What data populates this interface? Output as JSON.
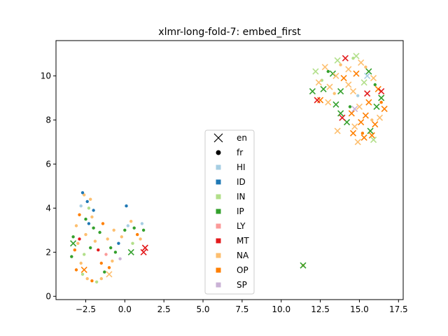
{
  "chart_data": {
    "type": "scatter",
    "title": "xlmr-long-fold-7: embed_first",
    "xlabel": "",
    "ylabel": "",
    "xlim": [
      -4.4,
      17.8
    ],
    "ylim": [
      -0.15,
      11.6
    ],
    "x_ticks": [
      -2.5,
      0.0,
      2.5,
      5.0,
      7.5,
      10.0,
      12.5,
      15.0,
      17.5
    ],
    "x_tick_labels": [
      "−2.5",
      "0.0",
      "2.5",
      "5.0",
      "7.5",
      "10.0",
      "12.5",
      "15.0",
      "17.5"
    ],
    "y_ticks": [
      0,
      2,
      4,
      6,
      8,
      10
    ],
    "y_tick_labels": [
      "0",
      "2",
      "4",
      "6",
      "8",
      "10"
    ],
    "grid": false,
    "legend_position": "center",
    "marker_legend": [
      {
        "label": "en",
        "marker": "x"
      },
      {
        "label": "fr",
        "marker": "circle"
      }
    ],
    "series": [
      {
        "name": "HI",
        "color": "#a6cee3"
      },
      {
        "name": "ID",
        "color": "#1f78b4"
      },
      {
        "name": "IN",
        "color": "#b2df8a"
      },
      {
        "name": "IP",
        "color": "#33a02c"
      },
      {
        "name": "LY",
        "color": "#fb9a99"
      },
      {
        "name": "MT",
        "color": "#e31a1c"
      },
      {
        "name": "NA",
        "color": "#fdbf6f"
      },
      {
        "name": "OP",
        "color": "#ff7f00"
      },
      {
        "name": "SP",
        "color": "#cab2d6"
      }
    ],
    "points_fr": [
      {
        "s": "NA",
        "x": -2.6,
        "y": 4.6
      },
      {
        "s": "ID",
        "x": -2.4,
        "y": 4.3
      },
      {
        "s": "HI",
        "x": -2.8,
        "y": 4.1
      },
      {
        "s": "NA",
        "x": -2.2,
        "y": 4.4
      },
      {
        "s": "ID",
        "x": -2.0,
        "y": 3.9
      },
      {
        "s": "OP",
        "x": -2.9,
        "y": 3.7
      },
      {
        "s": "IP",
        "x": -2.5,
        "y": 3.5
      },
      {
        "s": "NA",
        "x": -2.1,
        "y": 3.6
      },
      {
        "s": "ID",
        "x": -2.7,
        "y": 4.7
      },
      {
        "s": "IN",
        "x": -2.3,
        "y": 4.0
      },
      {
        "s": "NA",
        "x": -3.1,
        "y": 3.2
      },
      {
        "s": "IP",
        "x": -3.3,
        "y": 2.7
      },
      {
        "s": "NA",
        "x": -3.0,
        "y": 2.4
      },
      {
        "s": "OP",
        "x": -3.2,
        "y": 2.1
      },
      {
        "s": "IP",
        "x": -3.4,
        "y": 1.8
      },
      {
        "s": "NA",
        "x": -2.8,
        "y": 1.5
      },
      {
        "s": "OP",
        "x": -3.1,
        "y": 1.2
      },
      {
        "s": "IN",
        "x": -2.7,
        "y": 1.0
      },
      {
        "s": "NA",
        "x": -2.4,
        "y": 0.8
      },
      {
        "s": "OP",
        "x": -2.1,
        "y": 0.7
      },
      {
        "s": "IN",
        "x": -1.8,
        "y": 0.65
      },
      {
        "s": "NA",
        "x": -1.5,
        "y": 0.8
      },
      {
        "s": "IP",
        "x": -1.3,
        "y": 1.1
      },
      {
        "s": "OP",
        "x": -1.0,
        "y": 1.3
      },
      {
        "s": "NA",
        "x": -0.8,
        "y": 1.6
      },
      {
        "s": "IP",
        "x": -0.6,
        "y": 2.0
      },
      {
        "s": "ID",
        "x": -0.4,
        "y": 2.4
      },
      {
        "s": "NA",
        "x": -0.2,
        "y": 2.7
      },
      {
        "s": "IP",
        "x": 0.0,
        "y": 3.0
      },
      {
        "s": "HI",
        "x": 0.2,
        "y": 3.2
      },
      {
        "s": "NA",
        "x": 0.4,
        "y": 3.4
      },
      {
        "s": "IP",
        "x": 0.6,
        "y": 3.1
      },
      {
        "s": "OP",
        "x": 0.8,
        "y": 2.8
      },
      {
        "s": "NA",
        "x": 1.0,
        "y": 2.6
      },
      {
        "s": "IP",
        "x": 1.2,
        "y": 3.0
      },
      {
        "s": "HI",
        "x": 1.1,
        "y": 3.3
      },
      {
        "s": "ID",
        "x": 0.1,
        "y": 4.1
      },
      {
        "s": "IP",
        "x": -1.6,
        "y": 2.9
      },
      {
        "s": "NA",
        "x": -1.9,
        "y": 2.5
      },
      {
        "s": "MT",
        "x": -1.7,
        "y": 2.1
      },
      {
        "s": "IP",
        "x": -2.2,
        "y": 2.2
      },
      {
        "s": "NA",
        "x": -2.5,
        "y": 2.8
      },
      {
        "s": "IP",
        "x": -2.0,
        "y": 3.1
      },
      {
        "s": "OP",
        "x": -1.4,
        "y": 3.3
      },
      {
        "s": "NA",
        "x": -1.1,
        "y": 2.6
      },
      {
        "s": "IP",
        "x": -0.9,
        "y": 2.2
      },
      {
        "s": "LY",
        "x": -1.2,
        "y": 1.9
      },
      {
        "s": "NA",
        "x": -0.7,
        "y": 3.0
      },
      {
        "s": "SP",
        "x": -0.3,
        "y": 1.7
      },
      {
        "s": "IN",
        "x": -2.6,
        "y": 1.9
      },
      {
        "s": "MT",
        "x": -2.9,
        "y": 2.6
      },
      {
        "s": "OP",
        "x": -1.5,
        "y": 1.5
      },
      {
        "s": "ID",
        "x": -2.3,
        "y": 3.3
      },
      {
        "s": "IN",
        "x": 0.5,
        "y": 2.4
      },
      {
        "s": "IP",
        "x": 13.0,
        "y": 10.2
      },
      {
        "s": "NA",
        "x": 13.8,
        "y": 10.5
      },
      {
        "s": "IN",
        "x": 14.6,
        "y": 10.8
      },
      {
        "s": "NA",
        "x": 15.4,
        "y": 10.4
      },
      {
        "s": "IP",
        "x": 16.0,
        "y": 9.6
      },
      {
        "s": "OP",
        "x": 16.4,
        "y": 8.8
      },
      {
        "s": "NA",
        "x": 15.8,
        "y": 8.0
      },
      {
        "s": "OP",
        "x": 15.2,
        "y": 7.4
      },
      {
        "s": "IP",
        "x": 14.4,
        "y": 8.6
      },
      {
        "s": "NA",
        "x": 13.4,
        "y": 9.2
      },
      {
        "s": "IN",
        "x": 12.6,
        "y": 9.8
      },
      {
        "s": "HI",
        "x": 14.9,
        "y": 9.1
      },
      {
        "s": "NA",
        "x": 11.4,
        "y": 1.4
      }
    ],
    "points_en": [
      {
        "s": "NA",
        "x": 12.4,
        "y": 9.7
      },
      {
        "s": "IN",
        "x": 12.2,
        "y": 10.2
      },
      {
        "s": "NA",
        "x": 12.8,
        "y": 10.4
      },
      {
        "s": "IP",
        "x": 12.0,
        "y": 9.3
      },
      {
        "s": "OP",
        "x": 12.5,
        "y": 8.9
      },
      {
        "s": "NA",
        "x": 13.1,
        "y": 9.5
      },
      {
        "s": "IP",
        "x": 13.3,
        "y": 10.1
      },
      {
        "s": "IN",
        "x": 13.6,
        "y": 10.7
      },
      {
        "s": "MT",
        "x": 14.1,
        "y": 10.8
      },
      {
        "s": "NA",
        "x": 14.3,
        "y": 10.3
      },
      {
        "s": "IN",
        "x": 14.8,
        "y": 10.9
      },
      {
        "s": "NA",
        "x": 15.1,
        "y": 10.6
      },
      {
        "s": "IP",
        "x": 15.6,
        "y": 10.2
      },
      {
        "s": "NA",
        "x": 15.9,
        "y": 9.9
      },
      {
        "s": "OP",
        "x": 16.2,
        "y": 9.4
      },
      {
        "s": "IP",
        "x": 16.4,
        "y": 9.0
      },
      {
        "s": "OP",
        "x": 16.6,
        "y": 8.5
      },
      {
        "s": "NA",
        "x": 16.3,
        "y": 8.1
      },
      {
        "s": "OP",
        "x": 16.0,
        "y": 7.8
      },
      {
        "s": "IP",
        "x": 15.7,
        "y": 7.5
      },
      {
        "s": "OP",
        "x": 15.3,
        "y": 7.2
      },
      {
        "s": "NA",
        "x": 14.9,
        "y": 7.0
      },
      {
        "s": "OP",
        "x": 14.6,
        "y": 7.4
      },
      {
        "s": "IP",
        "x": 14.2,
        "y": 7.9
      },
      {
        "s": "MT",
        "x": 13.9,
        "y": 8.1
      },
      {
        "s": "OP",
        "x": 14.5,
        "y": 8.3
      },
      {
        "s": "NA",
        "x": 15.0,
        "y": 8.6
      },
      {
        "s": "OP",
        "x": 15.4,
        "y": 8.2
      },
      {
        "s": "OP",
        "x": 15.1,
        "y": 7.9
      },
      {
        "s": "NA",
        "x": 14.7,
        "y": 7.7
      },
      {
        "s": "OP",
        "x": 15.6,
        "y": 8.8
      },
      {
        "s": "IP",
        "x": 13.5,
        "y": 8.7
      },
      {
        "s": "NA",
        "x": 13.0,
        "y": 8.8
      },
      {
        "s": "IP",
        "x": 13.8,
        "y": 9.3
      },
      {
        "s": "NA",
        "x": 14.3,
        "y": 9.6
      },
      {
        "s": "OP",
        "x": 14.0,
        "y": 9.9
      },
      {
        "s": "IN",
        "x": 15.3,
        "y": 9.7
      },
      {
        "s": "MT",
        "x": 15.5,
        "y": 9.2
      },
      {
        "s": "NA",
        "x": 14.6,
        "y": 9.3
      },
      {
        "s": "IP",
        "x": 12.7,
        "y": 9.4
      },
      {
        "s": "MT",
        "x": 12.3,
        "y": 8.9
      },
      {
        "s": "NA",
        "x": 13.5,
        "y": 10.0
      },
      {
        "s": "OP",
        "x": 14.8,
        "y": 10.1
      },
      {
        "s": "IP",
        "x": 16.1,
        "y": 8.6
      },
      {
        "s": "MT",
        "x": 16.4,
        "y": 9.3
      },
      {
        "s": "OP",
        "x": 15.8,
        "y": 7.3
      },
      {
        "s": "IN",
        "x": 15.9,
        "y": 7.1
      },
      {
        "s": "NA",
        "x": 13.6,
        "y": 7.5
      },
      {
        "s": "IP",
        "x": 13.8,
        "y": 8.3
      },
      {
        "s": "SP",
        "x": 14.7,
        "y": 8.5
      },
      {
        "s": "HI",
        "x": 15.5,
        "y": 10.0
      },
      {
        "s": "IP",
        "x": 11.4,
        "y": 1.4
      },
      {
        "s": "MT",
        "x": 1.3,
        "y": 2.2
      },
      {
        "s": "MT",
        "x": 1.2,
        "y": 2.0
      },
      {
        "s": "IP",
        "x": -3.3,
        "y": 2.4
      },
      {
        "s": "OP",
        "x": -2.6,
        "y": 1.2
      },
      {
        "s": "IP",
        "x": 0.4,
        "y": 2.0
      },
      {
        "s": "NA",
        "x": -1.0,
        "y": 1.0
      }
    ]
  }
}
